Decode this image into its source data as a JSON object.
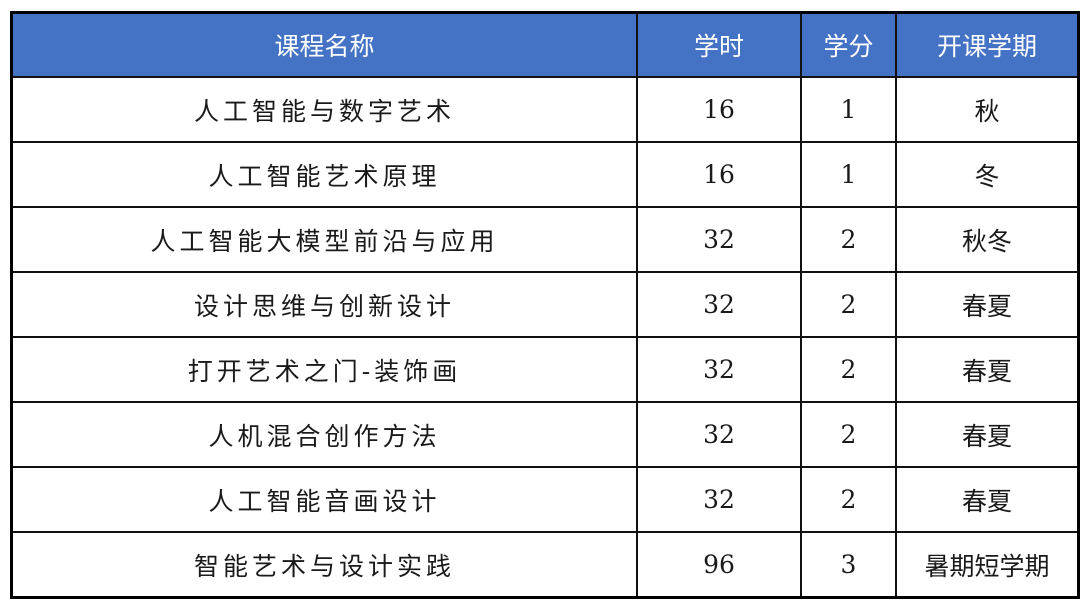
{
  "colors": {
    "header_bg": "#4472C4",
    "header_text": "#FFFFFF",
    "border": "#111111"
  },
  "table": {
    "headers": [
      "课程名称",
      "学时",
      "学分",
      "开课学期"
    ],
    "rows": [
      [
        "人工智能与数字艺术",
        "16",
        "1",
        "秋"
      ],
      [
        "人工智能艺术原理",
        "16",
        "1",
        "冬"
      ],
      [
        "人工智能大模型前沿与应用",
        "32",
        "2",
        "秋冬"
      ],
      [
        "设计思维与创新设计",
        "32",
        "2",
        "春夏"
      ],
      [
        "打开艺术之门-装饰画",
        "32",
        "2",
        "春夏"
      ],
      [
        "人机混合创作方法",
        "32",
        "2",
        "春夏"
      ],
      [
        "人工智能音画设计",
        "32",
        "2",
        "春夏"
      ],
      [
        "智能艺术与设计实践",
        "96",
        "3",
        "暑期短学期"
      ]
    ]
  }
}
